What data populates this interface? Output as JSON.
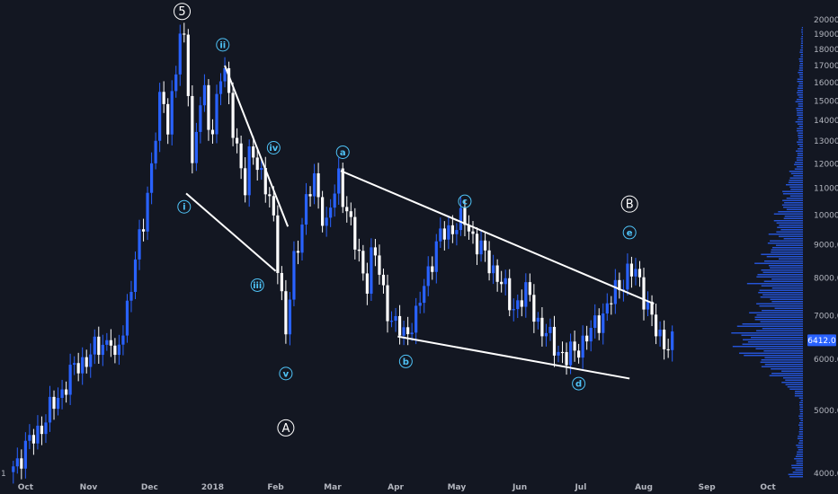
{
  "colors": {
    "background": "#131722",
    "up_candle": "#2962ff",
    "down_candle": "#ffffff",
    "trendline": "#ffffff",
    "wave_label_minor": "#4fc3f7",
    "wave_label_major": "#ffffff",
    "axis_text": "#b2b5be",
    "volume_profile": "#2962ff",
    "price_tag": "#2962ff"
  },
  "chart_data": {
    "type": "candlestick",
    "scale": "log",
    "ylim": [
      3900,
      21000
    ],
    "y_ticks": [
      4000,
      5000,
      6000,
      7000,
      8000,
      9000,
      10000,
      11000,
      12000,
      13000,
      14000,
      15000,
      16000,
      17000,
      18000,
      19000,
      20000
    ],
    "y_tick_labels": [
      "4000.0",
      "5000.0",
      "6000.0",
      "7000.0",
      "8000.0",
      "9000.0",
      "10000.0",
      "11000.0",
      "12000.0",
      "13000.0",
      "14000.0",
      "15000.0",
      "16000.0",
      "17000.0",
      "18000.0",
      "19000.0",
      "20000.0"
    ],
    "x_tick_labels": [
      "Oct",
      "Nov",
      "Dec",
      "2018",
      "Feb",
      "Mar",
      "Apr",
      "May",
      "Jun",
      "Jul",
      "Aug",
      "Sep",
      "Oct"
    ],
    "last_price_label": "6412.0",
    "last_price": 6412,
    "left_edge_label": "1",
    "path": [
      [
        "2017-09-25",
        4100
      ],
      [
        "2017-10-10",
        4800
      ],
      [
        "2017-10-25",
        5800
      ],
      [
        "2017-11-12",
        6500
      ],
      [
        "2017-11-13",
        5600
      ],
      [
        "2017-11-28",
        9800
      ],
      [
        "2017-12-07",
        15500
      ],
      [
        "2017-12-10",
        13800
      ],
      [
        "2017-12-17",
        19600
      ],
      [
        "2017-12-20",
        16000
      ],
      [
        "2017-12-22",
        12000
      ],
      [
        "2017-12-27",
        15800
      ],
      [
        "2017-12-31",
        13200
      ],
      [
        "2018-01-06",
        17100
      ],
      [
        "2018-01-17",
        10800
      ],
      [
        "2018-01-20",
        13000
      ],
      [
        "2018-01-31",
        9900
      ],
      [
        "2018-02-06",
        6500
      ],
      [
        "2018-02-10",
        8500
      ],
      [
        "2018-02-15",
        10200
      ],
      [
        "2018-02-20",
        11300
      ],
      [
        "2018-02-26",
        9600
      ],
      [
        "2018-03-04",
        11500
      ],
      [
        "2018-03-12",
        9000
      ],
      [
        "2018-03-18",
        7900
      ],
      [
        "2018-03-21",
        8900
      ],
      [
        "2018-03-30",
        6800
      ],
      [
        "2018-04-05",
        6600
      ],
      [
        "2018-04-11",
        6900
      ],
      [
        "2018-04-16",
        8100
      ],
      [
        "2018-04-24",
        9400
      ],
      [
        "2018-05-05",
        9800
      ],
      [
        "2018-05-14",
        8700
      ],
      [
        "2018-05-22",
        8000
      ],
      [
        "2018-05-28",
        7200
      ],
      [
        "2018-06-05",
        7600
      ],
      [
        "2018-06-11",
        6700
      ],
      [
        "2018-06-24",
        6000
      ],
      [
        "2018-07-06",
        6600
      ],
      [
        "2018-07-16",
        7400
      ],
      [
        "2018-07-24",
        8200
      ],
      [
        "2018-07-28",
        8100
      ],
      [
        "2018-08-03",
        7300
      ],
      [
        "2018-08-08",
        6400
      ],
      [
        "2018-08-15",
        6400
      ]
    ],
    "wave_labels": [
      {
        "text": "5",
        "date": "2017-12-17",
        "price": 20600,
        "style": "major"
      },
      {
        "text": "i",
        "date": "2017-12-18",
        "price": 10300,
        "style": "minor"
      },
      {
        "text": "ii",
        "date": "2018-01-06",
        "price": 18300,
        "style": "minor"
      },
      {
        "text": "iii",
        "date": "2018-01-23",
        "price": 7800,
        "style": "minor"
      },
      {
        "text": "iv",
        "date": "2018-01-31",
        "price": 12700,
        "style": "minor"
      },
      {
        "text": "v",
        "date": "2018-02-06",
        "price": 5700,
        "style": "minor"
      },
      {
        "text": "A",
        "date": "2018-02-06",
        "price": 4700,
        "style": "major"
      },
      {
        "text": "a",
        "date": "2018-03-06",
        "price": 12500,
        "style": "minor"
      },
      {
        "text": "b",
        "date": "2018-04-06",
        "price": 5950,
        "style": "minor"
      },
      {
        "text": "c",
        "date": "2018-05-05",
        "price": 10500,
        "style": "minor"
      },
      {
        "text": "d",
        "date": "2018-06-30",
        "price": 5500,
        "style": "minor"
      },
      {
        "text": "B",
        "date": "2018-07-25",
        "price": 10400,
        "style": "major"
      },
      {
        "text": "e",
        "date": "2018-07-25",
        "price": 9400,
        "style": "minor"
      }
    ],
    "trendlines": [
      {
        "from": [
          "2018-01-07",
          17000
        ],
        "to": [
          "2018-02-07",
          9600
        ]
      },
      {
        "from": [
          "2017-12-19",
          10800
        ],
        "to": [
          "2018-02-01",
          8200
        ]
      },
      {
        "from": [
          "2018-03-05",
          11700
        ],
        "to": [
          "2018-08-06",
          7300
        ]
      },
      {
        "from": [
          "2018-04-02",
          6500
        ],
        "to": [
          "2018-07-25",
          5600
        ]
      }
    ]
  }
}
